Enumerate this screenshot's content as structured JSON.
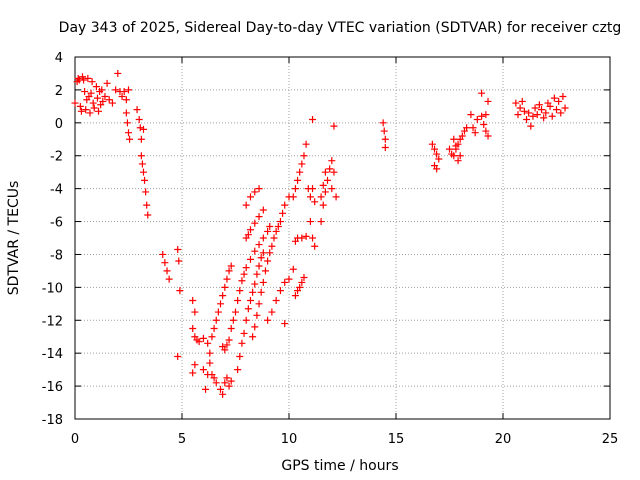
{
  "chart_data": {
    "type": "scatter",
    "title": "Day 343 of 2025, Sidereal Day-to-day VTEC variation (SDTVAR) for receiver cztg",
    "xlabel": "GPS time / hours",
    "ylabel": "SDTVAR / TECUs",
    "xlim": [
      0,
      25
    ],
    "ylim": [
      -18,
      4
    ],
    "xticks": [
      0,
      5,
      10,
      15,
      20,
      25
    ],
    "yticks": [
      -18,
      -16,
      -14,
      -12,
      -10,
      -8,
      -6,
      -4,
      -2,
      0,
      2,
      4
    ],
    "grid": true,
    "marker": "+",
    "color": "#ff0000",
    "series": [
      {
        "name": "SDTVAR",
        "points": [
          [
            0.0,
            1.2
          ],
          [
            0.1,
            2.5
          ],
          [
            0.15,
            2.7
          ],
          [
            0.2,
            2.6
          ],
          [
            0.25,
            1.0
          ],
          [
            0.3,
            0.7
          ],
          [
            0.35,
            2.8
          ],
          [
            0.4,
            2.6
          ],
          [
            0.45,
            1.9
          ],
          [
            0.5,
            0.8
          ],
          [
            0.55,
            1.4
          ],
          [
            0.6,
            2.7
          ],
          [
            0.65,
            1.6
          ],
          [
            0.7,
            0.6
          ],
          [
            0.75,
            1.8
          ],
          [
            0.8,
            2.5
          ],
          [
            0.85,
            1.2
          ],
          [
            0.9,
            0.9
          ],
          [
            1.0,
            2.2
          ],
          [
            1.05,
            1.5
          ],
          [
            1.1,
            0.7
          ],
          [
            1.15,
            1.9
          ],
          [
            1.2,
            1.1
          ],
          [
            1.25,
            2.0
          ],
          [
            1.3,
            1.3
          ],
          [
            1.4,
            1.6
          ],
          [
            1.5,
            2.4
          ],
          [
            1.6,
            1.4
          ],
          [
            1.75,
            1.2
          ],
          [
            1.9,
            2.0
          ],
          [
            2.0,
            3.0
          ],
          [
            2.1,
            1.9
          ],
          [
            2.2,
            1.6
          ],
          [
            2.3,
            1.9
          ],
          [
            2.4,
            1.4
          ],
          [
            2.5,
            2.0
          ],
          [
            2.4,
            0.6
          ],
          [
            2.45,
            0.0
          ],
          [
            2.5,
            -0.6
          ],
          [
            2.55,
            -1.0
          ],
          [
            2.9,
            0.8
          ],
          [
            3.0,
            0.2
          ],
          [
            3.05,
            -0.3
          ],
          [
            3.1,
            -1.0
          ],
          [
            3.2,
            -0.4
          ],
          [
            3.1,
            -2.0
          ],
          [
            3.15,
            -2.5
          ],
          [
            3.2,
            -3.0
          ],
          [
            3.25,
            -3.5
          ],
          [
            3.3,
            -4.2
          ],
          [
            3.35,
            -5.0
          ],
          [
            3.4,
            -5.6
          ],
          [
            4.1,
            -8.0
          ],
          [
            4.2,
            -8.5
          ],
          [
            4.3,
            -9.0
          ],
          [
            4.4,
            -9.5
          ],
          [
            4.8,
            -7.7
          ],
          [
            4.85,
            -8.4
          ],
          [
            4.9,
            -10.2
          ],
          [
            4.8,
            -14.2
          ],
          [
            5.5,
            -10.8
          ],
          [
            5.6,
            -11.5
          ],
          [
            5.5,
            -12.5
          ],
          [
            5.6,
            -13.0
          ],
          [
            5.7,
            -13.2
          ],
          [
            5.5,
            -15.2
          ],
          [
            5.6,
            -14.7
          ],
          [
            5.8,
            -13.3
          ],
          [
            6.0,
            -13.1
          ],
          [
            6.2,
            -13.4
          ],
          [
            6.3,
            -14.0
          ],
          [
            6.4,
            -13.0
          ],
          [
            6.5,
            -12.5
          ],
          [
            6.6,
            -12.0
          ],
          [
            6.7,
            -11.5
          ],
          [
            6.8,
            -11.0
          ],
          [
            6.9,
            -10.5
          ],
          [
            7.0,
            -10.0
          ],
          [
            7.1,
            -9.5
          ],
          [
            7.2,
            -9.0
          ],
          [
            7.3,
            -8.7
          ],
          [
            6.0,
            -15.0
          ],
          [
            6.1,
            -16.2
          ],
          [
            6.2,
            -15.3
          ],
          [
            6.3,
            -14.6
          ],
          [
            6.4,
            -15.3
          ],
          [
            6.5,
            -15.5
          ],
          [
            6.6,
            -15.8
          ],
          [
            6.8,
            -16.2
          ],
          [
            6.9,
            -16.5
          ],
          [
            7.0,
            -15.8
          ],
          [
            7.1,
            -15.5
          ],
          [
            7.2,
            -16.0
          ],
          [
            7.3,
            -15.7
          ],
          [
            6.9,
            -13.6
          ],
          [
            7.0,
            -13.8
          ],
          [
            7.1,
            -13.5
          ],
          [
            7.2,
            -13.2
          ],
          [
            7.3,
            -12.5
          ],
          [
            7.4,
            -12.0
          ],
          [
            7.5,
            -11.5
          ],
          [
            7.6,
            -10.8
          ],
          [
            7.7,
            -10.2
          ],
          [
            7.8,
            -9.6
          ],
          [
            7.9,
            -9.2
          ],
          [
            8.0,
            -8.8
          ],
          [
            8.2,
            -8.3
          ],
          [
            8.4,
            -7.8
          ],
          [
            8.6,
            -7.4
          ],
          [
            8.8,
            -7.0
          ],
          [
            9.0,
            -6.6
          ],
          [
            9.1,
            -6.3
          ],
          [
            7.6,
            -15.0
          ],
          [
            7.7,
            -14.2
          ],
          [
            7.8,
            -13.4
          ],
          [
            7.9,
            -12.8
          ],
          [
            8.0,
            -12.0
          ],
          [
            8.1,
            -11.3
          ],
          [
            8.2,
            -10.8
          ],
          [
            8.3,
            -10.3
          ],
          [
            8.4,
            -9.8
          ],
          [
            8.5,
            -9.2
          ],
          [
            8.6,
            -8.7
          ],
          [
            8.7,
            -8.2
          ],
          [
            8.8,
            -7.9
          ],
          [
            8.0,
            -7.0
          ],
          [
            8.1,
            -6.8
          ],
          [
            8.2,
            -6.5
          ],
          [
            8.4,
            -6.1
          ],
          [
            8.6,
            -5.7
          ],
          [
            8.8,
            -5.3
          ],
          [
            8.0,
            -5.0
          ],
          [
            8.2,
            -4.5
          ],
          [
            8.4,
            -4.2
          ],
          [
            8.6,
            -4.0
          ],
          [
            8.3,
            -13.0
          ],
          [
            8.4,
            -12.4
          ],
          [
            8.5,
            -11.7
          ],
          [
            8.6,
            -11.0
          ],
          [
            8.7,
            -10.3
          ],
          [
            8.8,
            -9.7
          ],
          [
            8.9,
            -9.0
          ],
          [
            9.0,
            -8.4
          ],
          [
            9.1,
            -7.9
          ],
          [
            9.2,
            -7.5
          ],
          [
            9.3,
            -7.0
          ],
          [
            9.4,
            -6.6
          ],
          [
            9.5,
            -6.3
          ],
          [
            9.6,
            -6.0
          ],
          [
            9.7,
            -5.5
          ],
          [
            9.8,
            -5.0
          ],
          [
            10.0,
            -4.5
          ],
          [
            9.0,
            -12.0
          ],
          [
            9.2,
            -11.5
          ],
          [
            9.4,
            -10.8
          ],
          [
            9.6,
            -10.2
          ],
          [
            9.8,
            -9.7
          ],
          [
            10.0,
            -9.5
          ],
          [
            9.8,
            -12.2
          ],
          [
            10.2,
            -8.9
          ],
          [
            10.3,
            -7.2
          ],
          [
            10.4,
            -7.0
          ],
          [
            10.6,
            -7.0
          ],
          [
            10.8,
            -6.9
          ],
          [
            10.3,
            -10.5
          ],
          [
            10.4,
            -10.2
          ],
          [
            10.5,
            -10.0
          ],
          [
            10.6,
            -9.7
          ],
          [
            10.7,
            -9.4
          ],
          [
            10.2,
            -4.5
          ],
          [
            10.3,
            -4.0
          ],
          [
            10.4,
            -3.5
          ],
          [
            10.5,
            -3.0
          ],
          [
            10.6,
            -2.5
          ],
          [
            10.7,
            -2.0
          ],
          [
            10.8,
            -1.3
          ],
          [
            10.9,
            -4.0
          ],
          [
            11.0,
            -4.5
          ],
          [
            11.1,
            -4.0
          ],
          [
            11.2,
            -4.8
          ],
          [
            11.0,
            -6.0
          ],
          [
            11.1,
            -7.0
          ],
          [
            11.2,
            -7.5
          ],
          [
            11.1,
            0.2
          ],
          [
            11.5,
            -6.0
          ],
          [
            11.6,
            -5.0
          ],
          [
            11.7,
            -4.2
          ],
          [
            11.8,
            -3.5
          ],
          [
            11.9,
            -2.8
          ],
          [
            12.0,
            -2.3
          ],
          [
            11.5,
            -4.5
          ],
          [
            11.6,
            -3.8
          ],
          [
            11.7,
            -3.0
          ],
          [
            12.0,
            -4.0
          ],
          [
            12.1,
            -3.0
          ],
          [
            12.2,
            -4.5
          ],
          [
            12.1,
            -0.2
          ],
          [
            14.4,
            0.0
          ],
          [
            14.45,
            -0.5
          ],
          [
            14.5,
            -1.0
          ],
          [
            14.5,
            -1.5
          ],
          [
            16.7,
            -1.3
          ],
          [
            16.8,
            -1.6
          ],
          [
            16.9,
            -1.9
          ],
          [
            17.0,
            -2.2
          ],
          [
            16.8,
            -2.6
          ],
          [
            16.9,
            -2.8
          ],
          [
            17.5,
            -1.6
          ],
          [
            17.6,
            -1.9
          ],
          [
            17.7,
            -2.0
          ],
          [
            17.8,
            -1.6
          ],
          [
            17.9,
            -1.3
          ],
          [
            18.0,
            -1.0
          ],
          [
            18.1,
            -0.8
          ],
          [
            18.2,
            -0.5
          ],
          [
            18.3,
            -0.3
          ],
          [
            17.7,
            -1.0
          ],
          [
            17.8,
            -1.4
          ],
          [
            17.9,
            -2.3
          ],
          [
            18.0,
            -2.0
          ],
          [
            18.5,
            0.5
          ],
          [
            18.6,
            -0.3
          ],
          [
            18.7,
            -0.6
          ],
          [
            18.8,
            0.2
          ],
          [
            19.0,
            0.4
          ],
          [
            19.1,
            -0.1
          ],
          [
            19.2,
            -0.5
          ],
          [
            19.3,
            -0.8
          ],
          [
            19.2,
            0.5
          ],
          [
            19.0,
            1.8
          ],
          [
            19.3,
            1.3
          ],
          [
            20.6,
            1.2
          ],
          [
            20.7,
            0.5
          ],
          [
            20.8,
            0.9
          ],
          [
            20.9,
            1.3
          ],
          [
            21.0,
            0.7
          ],
          [
            21.1,
            0.2
          ],
          [
            21.2,
            0.6
          ],
          [
            21.3,
            -0.2
          ],
          [
            21.4,
            0.4
          ],
          [
            21.5,
            0.9
          ],
          [
            21.6,
            0.5
          ],
          [
            21.7,
            1.1
          ],
          [
            21.8,
            0.8
          ],
          [
            21.9,
            0.3
          ],
          [
            22.0,
            0.6
          ],
          [
            22.1,
            1.2
          ],
          [
            22.2,
            1.0
          ],
          [
            22.3,
            0.4
          ],
          [
            22.4,
            1.5
          ],
          [
            22.5,
            0.8
          ],
          [
            22.6,
            1.3
          ],
          [
            22.7,
            0.6
          ],
          [
            22.8,
            1.6
          ],
          [
            22.9,
            0.9
          ]
        ]
      }
    ]
  }
}
